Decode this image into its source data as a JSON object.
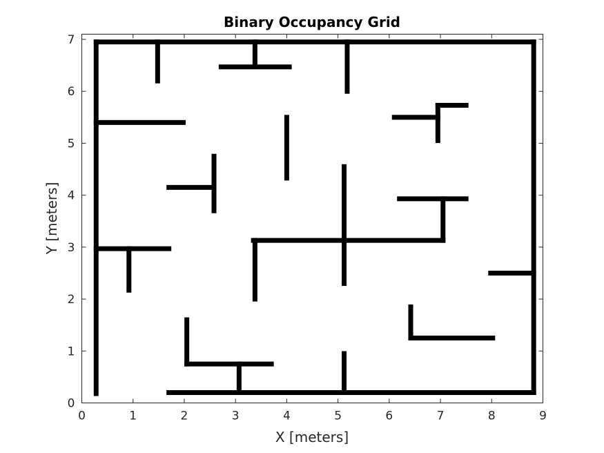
{
  "chart_data": {
    "type": "occupancy-grid",
    "title": "Binary Occupancy Grid",
    "xlabel": "X [meters]",
    "ylabel": "Y [meters]",
    "xlim": [
      0,
      9
    ],
    "ylim": [
      0,
      7.1
    ],
    "xticks": [
      0,
      1,
      2,
      3,
      4,
      5,
      6,
      7,
      8,
      9
    ],
    "yticks": [
      0,
      1,
      2,
      3,
      4,
      5,
      6,
      7
    ],
    "xtick_labels": [
      "0",
      "1",
      "2",
      "3",
      "4",
      "5",
      "6",
      "7",
      "8",
      "9"
    ],
    "ytick_labels": [
      "0",
      "1",
      "2",
      "3",
      "4",
      "5",
      "6",
      "7"
    ],
    "grid": false,
    "occupied_color": "#000000",
    "free_color": "#ffffff",
    "walls": [
      {
        "x1": 0.28,
        "y1": 6.95,
        "x2": 8.82,
        "y2": 6.95
      },
      {
        "x1": 0.28,
        "y1": 0.18,
        "x2": 0.28,
        "y2": 6.95
      },
      {
        "x1": 8.82,
        "y1": 0.2,
        "x2": 8.82,
        "y2": 6.95
      },
      {
        "x1": 1.7,
        "y1": 0.2,
        "x2": 8.82,
        "y2": 0.2
      },
      {
        "x1": 1.48,
        "y1": 6.2,
        "x2": 1.48,
        "y2": 6.95
      },
      {
        "x1": 3.38,
        "y1": 6.5,
        "x2": 3.38,
        "y2": 6.95
      },
      {
        "x1": 2.72,
        "y1": 6.47,
        "x2": 4.05,
        "y2": 6.47
      },
      {
        "x1": 5.18,
        "y1": 6.0,
        "x2": 5.18,
        "y2": 6.95
      },
      {
        "x1": 0.28,
        "y1": 5.4,
        "x2": 1.98,
        "y2": 5.4
      },
      {
        "x1": 4.0,
        "y1": 4.33,
        "x2": 4.0,
        "y2": 5.5
      },
      {
        "x1": 6.1,
        "y1": 5.5,
        "x2": 6.95,
        "y2": 5.5
      },
      {
        "x1": 6.95,
        "y1": 5.05,
        "x2": 6.95,
        "y2": 5.73
      },
      {
        "x1": 6.95,
        "y1": 5.73,
        "x2": 7.5,
        "y2": 5.73
      },
      {
        "x1": 2.58,
        "y1": 3.7,
        "x2": 2.58,
        "y2": 4.75
      },
      {
        "x1": 1.7,
        "y1": 4.15,
        "x2": 2.58,
        "y2": 4.15
      },
      {
        "x1": 5.12,
        "y1": 2.3,
        "x2": 5.12,
        "y2": 4.55
      },
      {
        "x1": 6.2,
        "y1": 3.93,
        "x2": 7.5,
        "y2": 3.93
      },
      {
        "x1": 7.05,
        "y1": 3.13,
        "x2": 7.05,
        "y2": 3.93
      },
      {
        "x1": 3.35,
        "y1": 3.13,
        "x2": 7.05,
        "y2": 3.13
      },
      {
        "x1": 3.38,
        "y1": 2.0,
        "x2": 3.38,
        "y2": 3.13
      },
      {
        "x1": 0.28,
        "y1": 2.97,
        "x2": 1.7,
        "y2": 2.97
      },
      {
        "x1": 0.92,
        "y1": 2.17,
        "x2": 0.92,
        "y2": 2.97
      },
      {
        "x1": 7.98,
        "y1": 2.5,
        "x2": 8.82,
        "y2": 2.5
      },
      {
        "x1": 6.42,
        "y1": 1.25,
        "x2": 6.42,
        "y2": 1.85
      },
      {
        "x1": 6.42,
        "y1": 1.25,
        "x2": 8.02,
        "y2": 1.25
      },
      {
        "x1": 2.05,
        "y1": 0.75,
        "x2": 2.05,
        "y2": 1.6
      },
      {
        "x1": 2.05,
        "y1": 0.75,
        "x2": 3.7,
        "y2": 0.75
      },
      {
        "x1": 3.07,
        "y1": 0.2,
        "x2": 3.07,
        "y2": 0.75
      },
      {
        "x1": 5.12,
        "y1": 0.2,
        "x2": 5.12,
        "y2": 0.95
      }
    ]
  }
}
